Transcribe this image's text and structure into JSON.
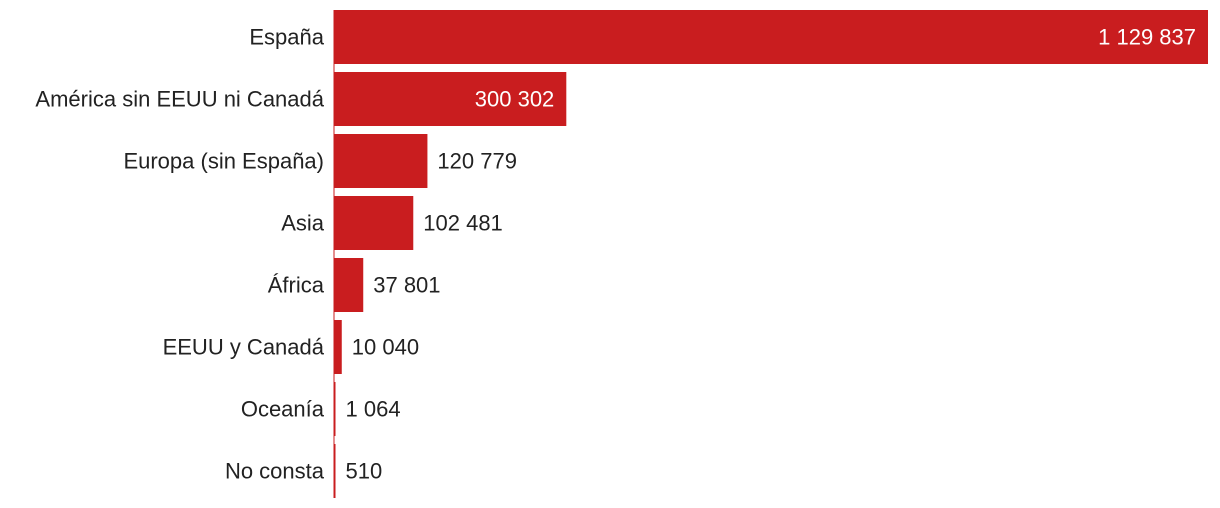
{
  "chart_data": {
    "type": "bar",
    "orientation": "horizontal",
    "categories": [
      "España",
      "América sin EEUU ni Canadá",
      "Europa (sin España)",
      "Asia",
      "África",
      "EEUU y Canadá",
      "Oceanía",
      "No consta"
    ],
    "values": [
      1129837,
      300302,
      120779,
      102481,
      37801,
      10040,
      1064,
      510
    ],
    "value_labels": [
      "1 129 837",
      "300 302",
      "120 779",
      "102 481",
      "37 801",
      "10 040",
      "1 064",
      "510"
    ],
    "xlim": [
      0,
      1129837
    ],
    "title": "",
    "xlabel": "",
    "ylabel": "",
    "grid": false,
    "legend": "none",
    "bar_color": "#c91d1f",
    "label_color_inside": "#ffffff",
    "label_color_outside": "#222222"
  }
}
